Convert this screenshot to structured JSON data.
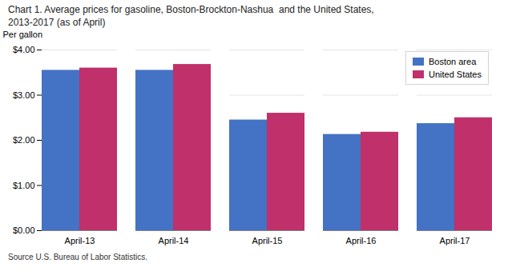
{
  "chart_data": {
    "type": "bar",
    "title": "Chart 1. Average prices for gasoline, Boston-Brockton-Nashua  and the United States,\n2013-2017 (as of April)",
    "ylabel": "Per gallon",
    "source": "Source U.S. Bureau of Labor Statistics.",
    "categories": [
      "April-13",
      "April-14",
      "April-15",
      "April-16",
      "April-17"
    ],
    "series": [
      {
        "name": "Boston area",
        "color": "#4472C4",
        "values": [
          3.55,
          3.55,
          2.45,
          2.13,
          2.37
        ]
      },
      {
        "name": "United States",
        "color": "#C0306A",
        "values": [
          3.6,
          3.68,
          2.6,
          2.18,
          2.5
        ]
      }
    ],
    "ylim": [
      0,
      4.0
    ],
    "yticks": [
      {
        "value": 0.0,
        "label": "$0.00"
      },
      {
        "value": 1.0,
        "label": "$1.00"
      },
      {
        "value": 2.0,
        "label": "$2.00"
      },
      {
        "value": 3.0,
        "label": "$3.00"
      },
      {
        "value": 4.0,
        "label": "$4.00"
      }
    ],
    "grid": true,
    "legend": "upper right"
  }
}
